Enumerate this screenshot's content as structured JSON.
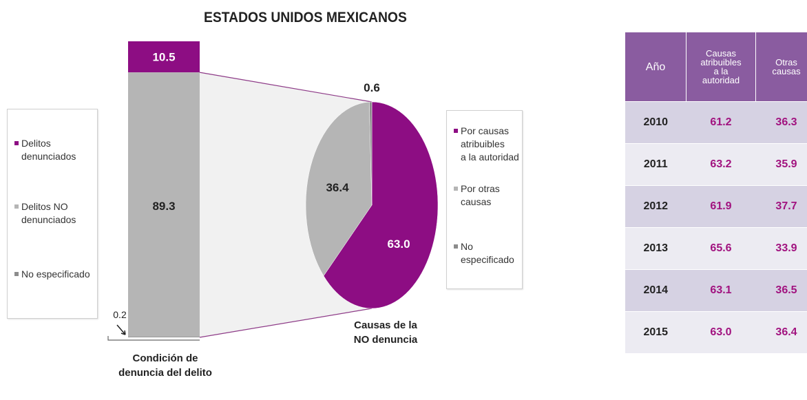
{
  "title": "ESTADOS UNIDOS MEXICANOS",
  "colors": {
    "purple": "#8d0d83",
    "light_gray": "#b5b5b5",
    "dark_gray": "#8c8c8c",
    "table_header": "#8a5ca0",
    "table_value": "#a1127f"
  },
  "chart_data": [
    {
      "type": "bar",
      "stacked": true,
      "xlabel": "Condición de\ndenuncia del delito",
      "categories": [
        "Condición de denuncia del delito"
      ],
      "series": [
        {
          "name": "Delitos denunciados",
          "value": 10.5,
          "label": "10.5",
          "color": "#8d0d83"
        },
        {
          "name": "Delitos NO denunciados",
          "value": 89.3,
          "label": "89.3",
          "color": "#b5b5b5"
        },
        {
          "name": "No especificado",
          "value": 0.2,
          "label": "0.2",
          "color": "#8c8c8c"
        }
      ],
      "legend": {
        "placement": "left",
        "items": [
          "Delitos\ndenunciados",
          "Delitos NO\ndenunciados",
          "No especificado"
        ]
      }
    },
    {
      "type": "pie",
      "xlabel": "Causas de la\nNO denuncia",
      "slices": [
        {
          "name": "Por causas atribuibles a la autoridad",
          "value": 63.0,
          "label": "63.0",
          "color": "#8d0d83"
        },
        {
          "name": "Por otras causas",
          "value": 36.4,
          "label": "36.4",
          "color": "#b5b5b5"
        },
        {
          "name": "No especificado",
          "value": 0.6,
          "label": "0.6",
          "color": "#8c8c8c"
        }
      ],
      "legend": {
        "placement": "right",
        "items": [
          "Por causas\natribuibles\na la autoridad",
          "Por otras\ncausas",
          "No especificado"
        ]
      }
    },
    {
      "type": "table",
      "columns": [
        "Año",
        "Causas\natribuibles\na la\nautoridad",
        "Otras\ncausas"
      ],
      "rows": [
        [
          "2010",
          "61.2",
          "36.3"
        ],
        [
          "2011",
          "63.2",
          "35.9"
        ],
        [
          "2012",
          "61.9",
          "37.7"
        ],
        [
          "2013",
          "65.6",
          "33.9"
        ],
        [
          "2014",
          "63.1",
          "36.5"
        ],
        [
          "2015",
          "63.0",
          "36.4"
        ]
      ]
    }
  ]
}
